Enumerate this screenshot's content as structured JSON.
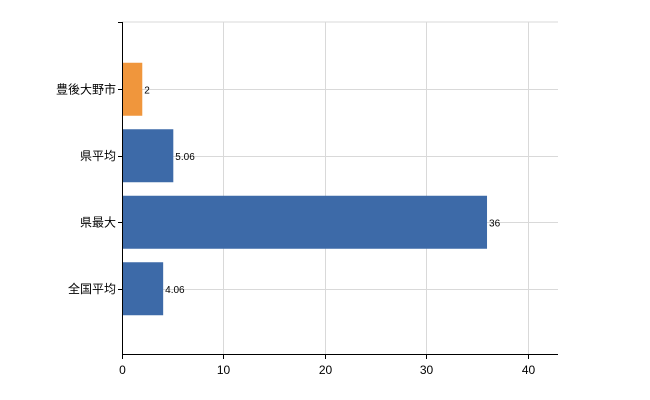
{
  "chart_data": {
    "type": "bar",
    "orientation": "horizontal",
    "categories": [
      "豊後大野市",
      "県平均",
      "県最大",
      "全国平均"
    ],
    "values": [
      2,
      5.06,
      36,
      4.06
    ],
    "data_labels": [
      "2",
      "5.06",
      "36",
      "4.06"
    ],
    "colors": [
      "#f0963c",
      "#3d6aa8",
      "#3d6aa8",
      "#3d6aa8"
    ],
    "xlim": [
      0,
      43
    ],
    "x_ticks": [
      0,
      10,
      20,
      30,
      40
    ],
    "grid": true,
    "title": "",
    "xlabel": "",
    "ylabel": ""
  }
}
